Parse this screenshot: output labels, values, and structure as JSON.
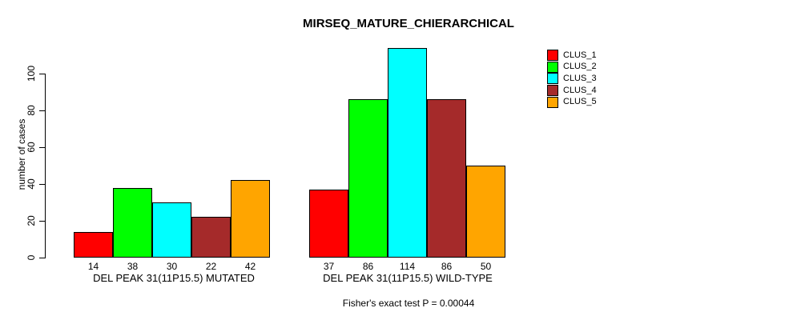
{
  "chart_data": {
    "type": "bar",
    "title": "MIRSEQ_MATURE_CHIERARCHICAL",
    "ylabel": "number of cases",
    "xlabel": "",
    "ylim": [
      0,
      115
    ],
    "yticks": [
      0,
      20,
      40,
      60,
      80,
      100
    ],
    "grid": false,
    "legend_position": "top-right",
    "categories": [
      "DEL PEAK 31(11P15.5) MUTATED",
      "DEL PEAK 31(11P15.5) WILD-TYPE"
    ],
    "series": [
      {
        "name": "CLUS_1",
        "color": "#FF0000",
        "values": [
          14,
          37
        ]
      },
      {
        "name": "CLUS_2",
        "color": "#00FF00",
        "values": [
          38,
          86
        ]
      },
      {
        "name": "CLUS_3",
        "color": "#00FFFF",
        "values": [
          30,
          114
        ]
      },
      {
        "name": "CLUS_4",
        "color": "#A52A2A",
        "values": [
          22,
          86
        ]
      },
      {
        "name": "CLUS_5",
        "color": "#FFA500",
        "values": [
          42,
          50
        ]
      }
    ],
    "bar_value_labels_shown": true,
    "annotation": "Fisher's exact test P = 0.00044"
  }
}
